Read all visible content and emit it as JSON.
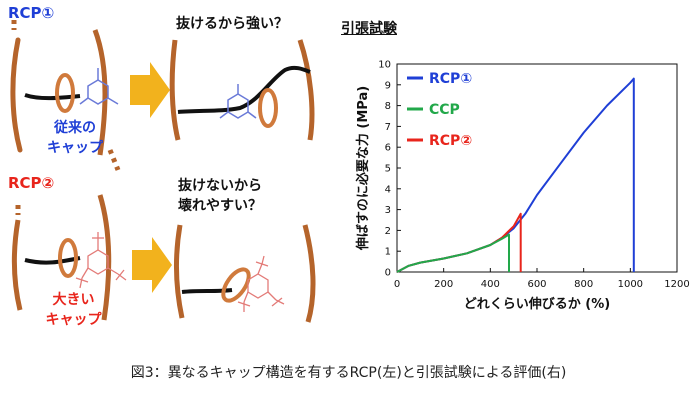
{
  "left": {
    "top_label": "RCP①",
    "top_cap_text": [
      "従来の",
      "キャップ"
    ],
    "top_question": "抜けるから強い？",
    "bottom_label": "RCP②",
    "bottom_cap_text": [
      "大きい",
      "キャップ"
    ],
    "bottom_question": [
      "抜けないから",
      "壊れやすい？"
    ]
  },
  "chart_title": "引張試験",
  "caption": "図3：異なるキャップ構造を有するRCP(左)と引張試験による評価(右)",
  "colors": {
    "blue": "#1f3fd6",
    "green": "#22a84a",
    "red": "#e8251c",
    "chain": "#b5642b",
    "ring": "#d07a3c",
    "arrow": "#f2b21d"
  },
  "chart_data": {
    "type": "line",
    "xlabel": "どれくらい伸びるか (%)",
    "ylabel": "伸ばすのに必要な力 (MPa)",
    "xlim": [
      0,
      1200
    ],
    "ylim": [
      0,
      10
    ],
    "xticks": [
      "0",
      "200",
      "400",
      "600",
      "800",
      "1000",
      "1200"
    ],
    "yticks": [
      "0",
      "1",
      "2",
      "3",
      "4",
      "5",
      "6",
      "7",
      "8",
      "9",
      "10"
    ],
    "legend": "top-left",
    "grid": false,
    "series": [
      {
        "name": "RCP①",
        "color": "#1f3fd6",
        "x": [
          0,
          50,
          100,
          200,
          300,
          400,
          450,
          500,
          550,
          600,
          700,
          800,
          900,
          1000,
          1015,
          1015
        ],
        "y": [
          0,
          0.3,
          0.45,
          0.65,
          0.9,
          1.3,
          1.65,
          2.1,
          2.8,
          3.7,
          5.2,
          6.7,
          8.0,
          9.1,
          9.3,
          0
        ]
      },
      {
        "name": "CCP",
        "color": "#22a84a",
        "x": [
          0,
          50,
          100,
          200,
          300,
          400,
          450,
          480,
          480
        ],
        "y": [
          0,
          0.3,
          0.45,
          0.65,
          0.9,
          1.3,
          1.6,
          1.8,
          0
        ]
      },
      {
        "name": "RCP②",
        "color": "#e8251c",
        "x": [
          0,
          50,
          100,
          200,
          300,
          400,
          450,
          500,
          530,
          530
        ],
        "y": [
          0,
          0.3,
          0.45,
          0.65,
          0.9,
          1.3,
          1.65,
          2.2,
          2.8,
          0
        ]
      }
    ]
  }
}
